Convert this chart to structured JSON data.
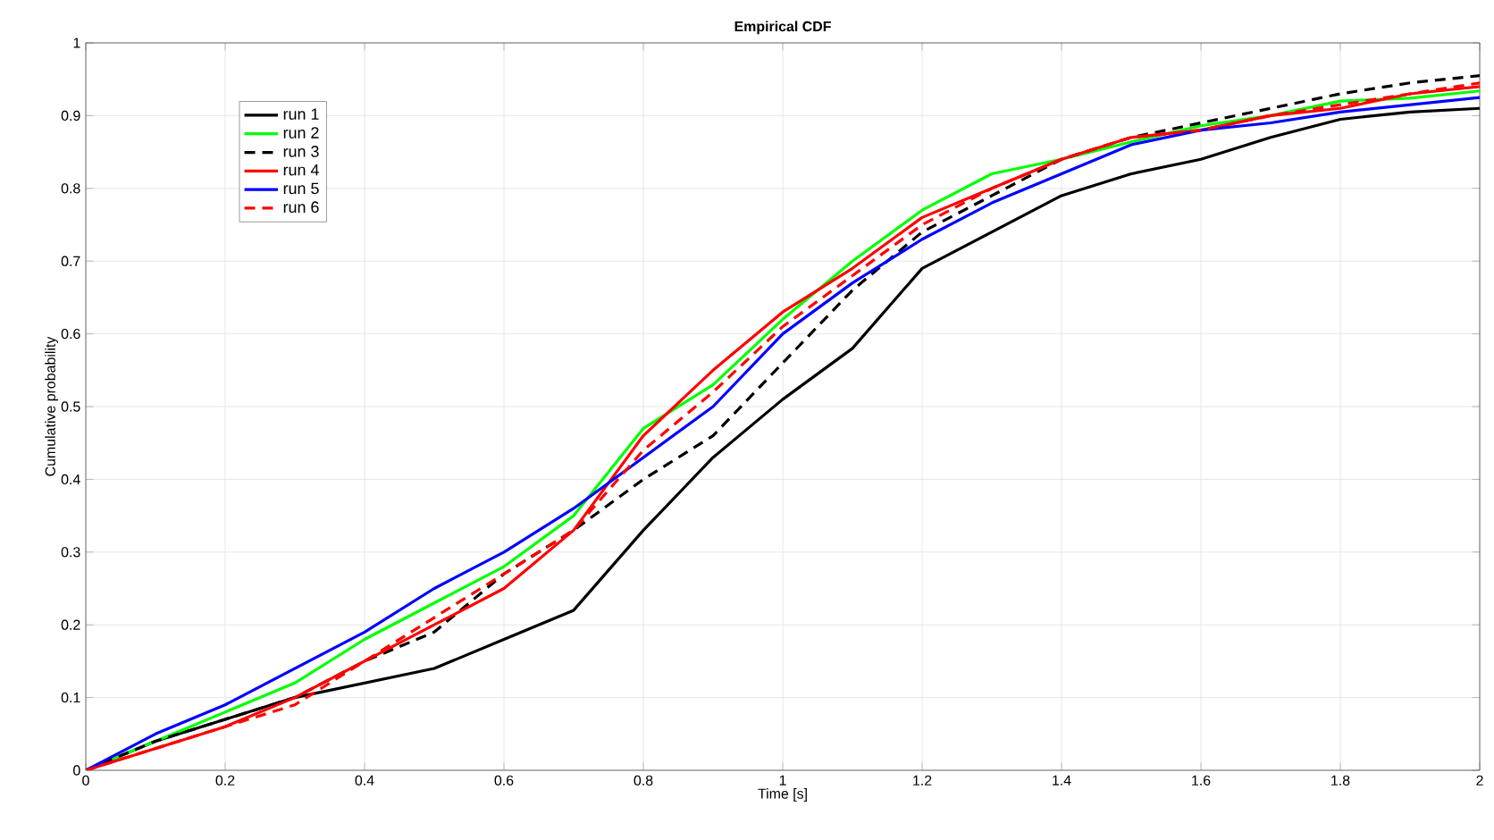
{
  "chart_data": {
    "type": "line",
    "title": "Empirical CDF",
    "xlabel": "Time [s]",
    "ylabel": "Cumulative probability",
    "x": [
      0,
      0.1,
      0.2,
      0.3,
      0.4,
      0.5,
      0.6,
      0.7,
      0.8,
      0.9,
      1.0,
      1.1,
      1.2,
      1.3,
      1.4,
      1.5,
      1.6,
      1.7,
      1.8,
      1.9,
      2.0
    ],
    "series": [
      {
        "name": "run 1",
        "color": "#000000",
        "line_style": "solid",
        "values": [
          0,
          0.04,
          0.07,
          0.1,
          0.12,
          0.14,
          0.18,
          0.22,
          0.33,
          0.43,
          0.51,
          0.58,
          0.69,
          0.74,
          0.79,
          0.82,
          0.84,
          0.87,
          0.895,
          0.905,
          0.91
        ]
      },
      {
        "name": "run 2",
        "color": "#00ff00",
        "line_style": "solid",
        "values": [
          0,
          0.04,
          0.08,
          0.12,
          0.18,
          0.23,
          0.28,
          0.35,
          0.47,
          0.53,
          0.62,
          0.7,
          0.77,
          0.82,
          0.84,
          0.864,
          0.886,
          0.9,
          0.92,
          0.924,
          0.934
        ]
      },
      {
        "name": "run 3",
        "color": "#000000",
        "line_style": "dashed",
        "values": [
          0,
          0.04,
          0.07,
          0.1,
          0.15,
          0.19,
          0.27,
          0.33,
          0.4,
          0.46,
          0.56,
          0.66,
          0.74,
          0.79,
          0.84,
          0.87,
          0.89,
          0.91,
          0.93,
          0.945,
          0.955
        ]
      },
      {
        "name": "run 4",
        "color": "#ff0000",
        "line_style": "solid",
        "values": [
          0,
          0.03,
          0.06,
          0.1,
          0.15,
          0.2,
          0.25,
          0.33,
          0.46,
          0.55,
          0.63,
          0.69,
          0.76,
          0.8,
          0.84,
          0.87,
          0.88,
          0.9,
          0.91,
          0.93,
          0.94
        ]
      },
      {
        "name": "run 5",
        "color": "#0000ff",
        "line_style": "solid",
        "values": [
          0,
          0.05,
          0.09,
          0.14,
          0.19,
          0.25,
          0.3,
          0.36,
          0.43,
          0.5,
          0.6,
          0.67,
          0.73,
          0.78,
          0.82,
          0.86,
          0.88,
          0.89,
          0.905,
          0.915,
          0.925
        ]
      },
      {
        "name": "run 6",
        "color": "#ff0000",
        "line_style": "dashed",
        "values": [
          0,
          0.03,
          0.06,
          0.09,
          0.15,
          0.21,
          0.27,
          0.33,
          0.44,
          0.52,
          0.61,
          0.68,
          0.75,
          0.8,
          0.84,
          0.87,
          0.88,
          0.9,
          0.915,
          0.93,
          0.945
        ]
      }
    ],
    "xlim": [
      0,
      2
    ],
    "ylim": [
      0,
      1
    ],
    "xticks": [
      0,
      0.2,
      0.4,
      0.6,
      0.8,
      1,
      1.2,
      1.4,
      1.6,
      1.8,
      2
    ],
    "yticks": [
      0,
      0.1,
      0.2,
      0.3,
      0.4,
      0.5,
      0.6,
      0.7,
      0.8,
      0.9,
      1
    ],
    "grid": true,
    "legend": "top left"
  }
}
